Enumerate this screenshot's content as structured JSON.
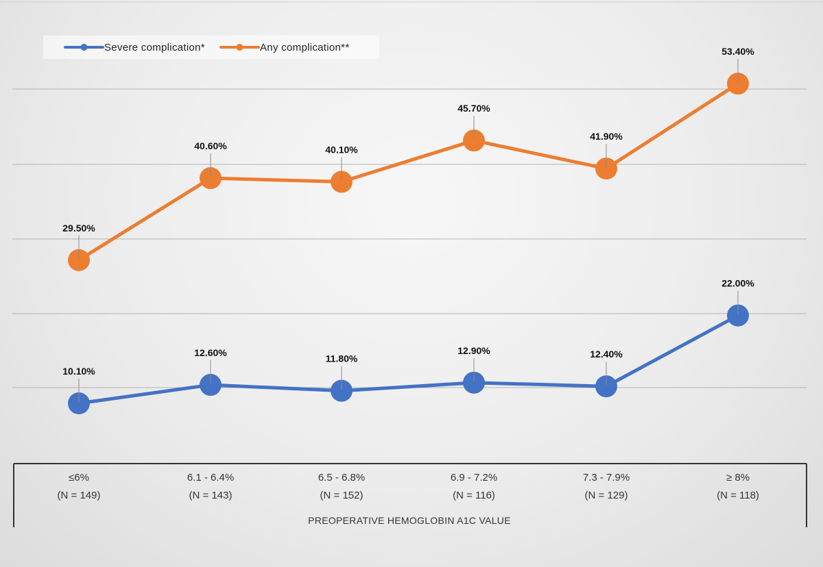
{
  "chart_data": {
    "type": "line",
    "title": "",
    "xlabel": "PREOPERATIVE HEMOGLOBIN A1C VALUE",
    "ylabel": "",
    "ylim": [
      5,
      60
    ],
    "grid": true,
    "legend_position": "top-left",
    "categories": [
      {
        "range": "≤6%",
        "n": "(N = 149)"
      },
      {
        "range": "6.1 - 6.4%",
        "n": "(N = 143)"
      },
      {
        "range": "6.5 - 6.8%",
        "n": "(N = 152)"
      },
      {
        "range": "6.9 - 7.2%",
        "n": "(N = 116)"
      },
      {
        "range": "7.3 - 7.9%",
        "n": "(N = 129)"
      },
      {
        "range": "≥ 8%",
        "n": "(N = 118)"
      }
    ],
    "series": [
      {
        "name": "Severe complication*",
        "color": "#4472C4",
        "values": [
          10.1,
          12.6,
          11.8,
          12.9,
          12.4,
          22.0
        ],
        "labels": [
          "10.10%",
          "12.60%",
          "11.80%",
          "12.90%",
          "12.40%",
          "22.00%"
        ]
      },
      {
        "name": "Any complication**",
        "color": "#ED7D31",
        "values": [
          29.5,
          40.6,
          40.1,
          45.7,
          41.9,
          53.4
        ],
        "labels": [
          "29.50%",
          "40.60%",
          "40.10%",
          "45.70%",
          "41.90%",
          "53.40%"
        ]
      }
    ]
  }
}
